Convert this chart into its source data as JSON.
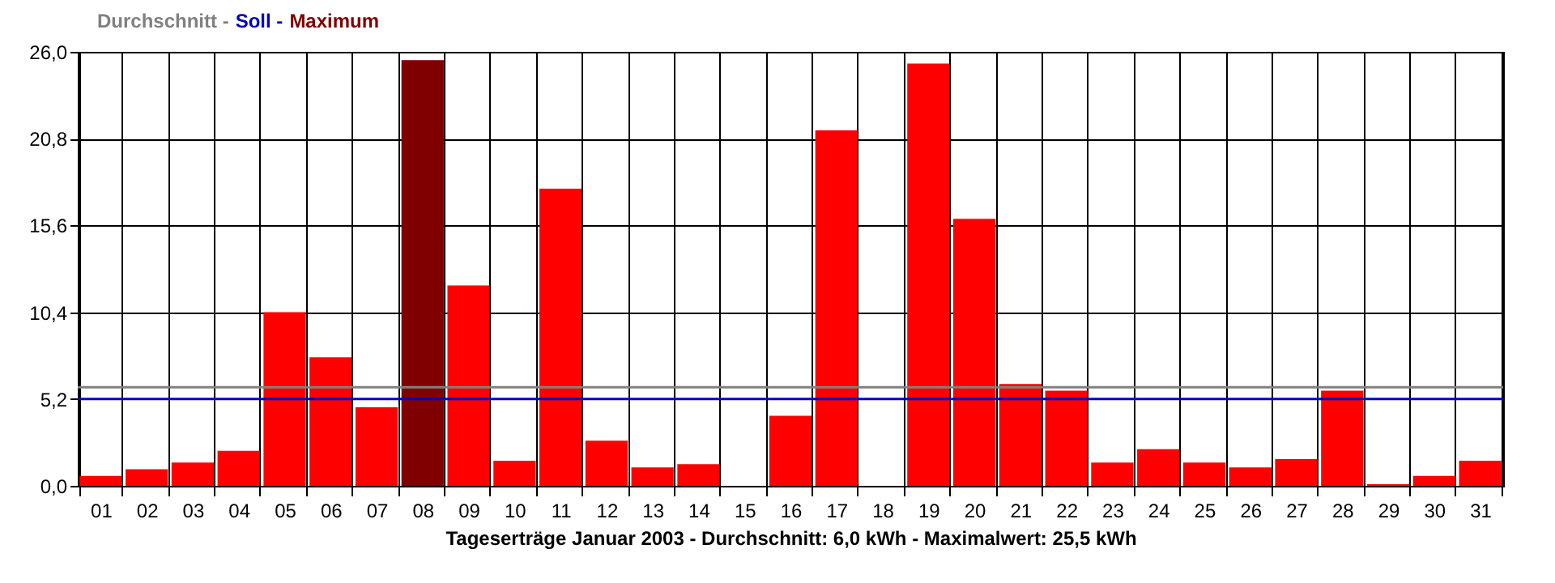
{
  "chart_data": {
    "type": "bar",
    "xlabel": "Tageserträge Januar 2003 - Durchschnitt: 6,0 kWh - Maximalwert: 25,5 kWh",
    "categories": [
      "01",
      "02",
      "03",
      "04",
      "05",
      "06",
      "07",
      "08",
      "09",
      "10",
      "11",
      "12",
      "13",
      "14",
      "15",
      "16",
      "17",
      "18",
      "19",
      "20",
      "21",
      "22",
      "23",
      "24",
      "25",
      "26",
      "27",
      "28",
      "29",
      "30",
      "31"
    ],
    "series": [
      {
        "color": "#ff0000",
        "values": [
          0.6,
          1.0,
          1.4,
          2.1,
          10.4,
          7.7,
          4.7,
          null,
          12.0,
          1.5,
          17.8,
          2.7,
          1.1,
          1.3,
          0,
          4.2,
          21.3,
          0,
          25.3,
          16.0,
          6.1,
          5.7,
          1.4,
          2.2,
          1.4,
          1.1,
          1.6,
          5.7,
          0.1,
          0.6,
          1.5
        ]
      },
      {
        "name": "Maximum",
        "color": "#800000",
        "values": [
          null,
          null,
          null,
          null,
          null,
          null,
          null,
          25.5,
          null,
          null,
          null,
          null,
          null,
          null,
          null,
          null,
          null,
          null,
          null,
          null,
          null,
          null,
          null,
          null,
          null,
          null,
          null,
          null,
          null,
          null,
          null
        ]
      }
    ],
    "ylim": [
      0,
      26
    ],
    "yticks": [
      {
        "value": 0,
        "label": "0,0"
      },
      {
        "value": 5.2,
        "label": "5,2"
      },
      {
        "value": 10.4,
        "label": "10,4"
      },
      {
        "value": 15.6,
        "label": "15,6"
      },
      {
        "value": 20.8,
        "label": "20,8"
      },
      {
        "value": 26,
        "label": "26,0"
      }
    ],
    "ref_lines": [
      {
        "axis": "y",
        "value": 5.9,
        "label": "Durchschnitt -",
        "color": "#808080"
      },
      {
        "axis": "y",
        "value": 5.2,
        "label": "Soll -",
        "color": "#0000c0"
      }
    ],
    "grid": true
  }
}
